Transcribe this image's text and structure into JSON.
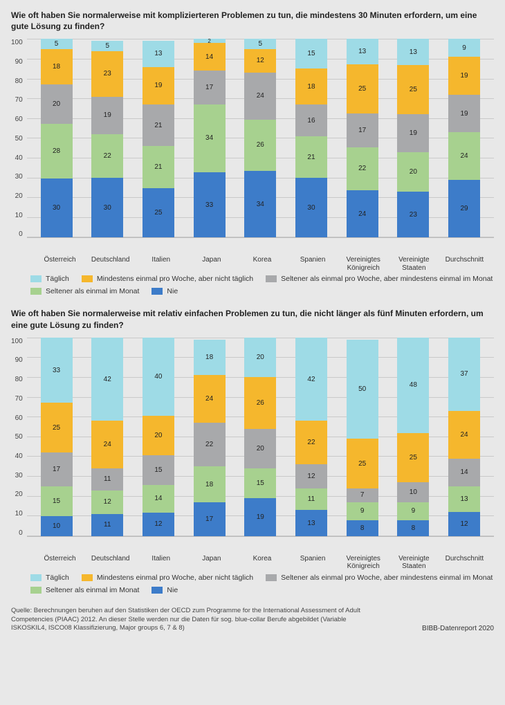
{
  "colors": {
    "daily": "#9edbe6",
    "weekly": "#f5b72d",
    "monthly": "#a8a9ab",
    "less_monthly": "#a7d18f",
    "never": "#3d7cc9",
    "background": "#e8e8e8",
    "grid": "#bcbcbc",
    "text": "#222222"
  },
  "y_axis": {
    "min": 0,
    "max": 100,
    "step": 10,
    "ticks": [
      "100",
      "90",
      "80",
      "70",
      "60",
      "50",
      "40",
      "30",
      "20",
      "10",
      "0"
    ]
  },
  "segment_order": [
    "daily",
    "weekly",
    "monthly",
    "less_monthly",
    "never"
  ],
  "categories": [
    {
      "key": "at",
      "label": "Österreich"
    },
    {
      "key": "de",
      "label": "Deutschland"
    },
    {
      "key": "it",
      "label": "Italien"
    },
    {
      "key": "jp",
      "label": "Japan"
    },
    {
      "key": "kr",
      "label": "Korea"
    },
    {
      "key": "es",
      "label": "Spanien"
    },
    {
      "key": "uk",
      "label": "Vereinigtes Königreich"
    },
    {
      "key": "us",
      "label": "Vereinigte Staaten"
    },
    {
      "key": "avg",
      "label": "Durchschnitt"
    }
  ],
  "legend_labels": {
    "daily": "Täglich",
    "weekly": "Mindestens einmal pro Woche, aber nicht täglich",
    "monthly": "Seltener als einmal pro Woche, aber mindestens einmal im Monat",
    "less_monthly": "Seltener als einmal im Monat",
    "never": "Nie"
  },
  "chart1": {
    "title": "Wie oft haben Sie normalerweise mit komplizierteren Problemen zu tun, die mindestens 30 Minuten erfordern, um eine gute Lösung zu finden?",
    "data": {
      "at": {
        "daily": 5,
        "weekly": 18,
        "monthly": 20,
        "less_monthly": 28,
        "never": 30
      },
      "de": {
        "daily": 5,
        "weekly": 23,
        "monthly": 19,
        "less_monthly": 22,
        "never": 30
      },
      "it": {
        "daily": 13,
        "weekly": 19,
        "monthly": 21,
        "less_monthly": 21,
        "never": 25
      },
      "jp": {
        "daily": 2,
        "weekly": 14,
        "monthly": 17,
        "less_monthly": 34,
        "never": 33
      },
      "kr": {
        "daily": 5,
        "weekly": 12,
        "monthly": 24,
        "less_monthly": 26,
        "never": 34
      },
      "es": {
        "daily": 15,
        "weekly": 18,
        "monthly": 16,
        "less_monthly": 21,
        "never": 30
      },
      "uk": {
        "daily": 13,
        "weekly": 25,
        "monthly": 17,
        "less_monthly": 22,
        "never": 24
      },
      "us": {
        "daily": 13,
        "weekly": 25,
        "monthly": 19,
        "less_monthly": 20,
        "never": 23
      },
      "avg": {
        "daily": 9,
        "weekly": 19,
        "monthly": 19,
        "less_monthly": 24,
        "never": 29
      }
    }
  },
  "chart2": {
    "title": "Wie oft haben Sie normalerweise mit relativ einfachen Problemen zu tun, die nicht länger als fünf Minuten erfordern, um eine gute Lösung zu finden?",
    "data": {
      "at": {
        "daily": 33,
        "weekly": 25,
        "monthly": 17,
        "less_monthly": 15,
        "never": 10
      },
      "de": {
        "daily": 42,
        "weekly": 24,
        "monthly": 11,
        "less_monthly": 12,
        "never": 11
      },
      "it": {
        "daily": 40,
        "weekly": 20,
        "monthly": 15,
        "less_monthly": 14,
        "never": 12
      },
      "jp": {
        "daily": 18,
        "weekly": 24,
        "monthly": 22,
        "less_monthly": 18,
        "never": 17
      },
      "kr": {
        "daily": 20,
        "weekly": 26,
        "monthly": 20,
        "less_monthly": 15,
        "never": 19
      },
      "es": {
        "daily": 42,
        "weekly": 22,
        "monthly": 12,
        "less_monthly": 11,
        "never": 13
      },
      "uk": {
        "daily": 50,
        "weekly": 25,
        "monthly": 7,
        "less_monthly": 9,
        "never": 8
      },
      "us": {
        "daily": 48,
        "weekly": 25,
        "monthly": 10,
        "less_monthly": 9,
        "never": 8
      },
      "avg": {
        "daily": 37,
        "weekly": 24,
        "monthly": 14,
        "less_monthly": 13,
        "never": 12
      }
    }
  },
  "source_text": "Quelle: Berechnungen beruhen auf den Statistiken der OECD zum Programme for the International Assessment of Adult Competencies (PIAAC) 2012. An dieser Stelle werden nur die Daten für sog. blue-collar Berufe abgebildet (Variable ISKOSKIL4, ISCO08 Klassifizierung, Major groups 6, 7 & 8)",
  "report_label": "BIBB-Datenreport 2020"
}
